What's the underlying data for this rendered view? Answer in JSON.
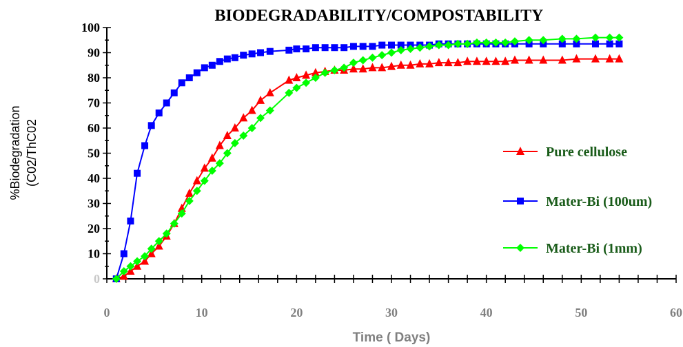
{
  "chart_data": {
    "type": "line",
    "title": "BIODEGRADABILITY/COMPOSTABILITY",
    "xlabel": "Time ( Days)",
    "ylabel_lines": [
      "%Biodegradation",
      "(C02/ThC02"
    ],
    "xlim": [
      0,
      60
    ],
    "ylim": [
      0,
      100
    ],
    "x_ticks": [
      "0",
      "10",
      "20",
      "30",
      "40",
      "50",
      "60"
    ],
    "y_ticks": [
      "0",
      "10",
      "20",
      "30",
      "40",
      "50",
      "60",
      "70",
      "80",
      "90",
      "100"
    ],
    "legend_position": "right",
    "series": [
      {
        "name": "Pure cellulose",
        "color": "#ff0000",
        "marker": "triangle",
        "x": [
          1,
          1.8,
          2.5,
          3.2,
          4,
          4.7,
          5.5,
          6.3,
          7.1,
          7.9,
          8.7,
          9.5,
          10.3,
          11.1,
          11.9,
          12.7,
          13.5,
          14.4,
          15.3,
          16.2,
          17.2,
          19.2,
          20,
          21,
          22,
          23,
          24,
          25,
          26,
          27,
          28,
          29,
          30,
          31,
          32,
          33,
          34,
          35,
          36,
          37,
          38,
          39,
          40,
          41,
          42,
          43,
          44.5,
          46,
          48,
          49.5,
          51.5,
          53,
          54
        ],
        "y": [
          0,
          1,
          3,
          5,
          7,
          10,
          13,
          17,
          22,
          28,
          34,
          39,
          44,
          48,
          53,
          57,
          60,
          64,
          67,
          71,
          74,
          79,
          80,
          81,
          82,
          82.5,
          83,
          83,
          83.5,
          83.5,
          84,
          84,
          84.5,
          85,
          85,
          85.5,
          85.5,
          86,
          86,
          86,
          86.5,
          86.5,
          86.5,
          86.5,
          86.5,
          87,
          87,
          87,
          87,
          87.5,
          87.5,
          87.5,
          87.5
        ]
      },
      {
        "name": "Mater-Bi (100um)",
        "color": "#0000ff",
        "marker": "square",
        "x": [
          1,
          1.8,
          2.5,
          3.2,
          4,
          4.7,
          5.5,
          6.3,
          7.1,
          7.9,
          8.7,
          9.5,
          10.3,
          11.1,
          11.9,
          12.7,
          13.5,
          14.4,
          15.3,
          16.2,
          17.2,
          19.2,
          20,
          21,
          22,
          23,
          24,
          25,
          26,
          27,
          28,
          29,
          30,
          31,
          32,
          33,
          34,
          35,
          36,
          37,
          38,
          39,
          40,
          41,
          42,
          43,
          44.5,
          46,
          48,
          49.5,
          51.5,
          53,
          54
        ],
        "y": [
          0,
          10,
          23,
          42,
          53,
          61,
          66,
          70,
          74,
          78,
          80,
          82,
          84,
          85,
          86.5,
          87.5,
          88,
          89,
          89.5,
          90,
          90.5,
          91,
          91.5,
          91.5,
          92,
          92,
          92,
          92,
          92.5,
          92.5,
          92.5,
          93,
          93,
          93,
          93,
          93,
          93,
          93.5,
          93.5,
          93.5,
          93.5,
          93.5,
          93.5,
          93.5,
          93.5,
          93.5,
          93.5,
          93.5,
          93.5,
          93.5,
          93.5,
          93.5,
          93.5
        ]
      },
      {
        "name": "Mater-Bi (1mm)",
        "color": "#00ff00",
        "marker": "diamond",
        "x": [
          1,
          1.8,
          2.5,
          3.2,
          4,
          4.7,
          5.5,
          6.3,
          7.1,
          7.9,
          8.7,
          9.5,
          10.3,
          11.1,
          11.9,
          12.7,
          13.5,
          14.4,
          15.3,
          16.2,
          17.2,
          19.2,
          20,
          21,
          22,
          23,
          24,
          25,
          26,
          27,
          28,
          29,
          30,
          31,
          32,
          33,
          34,
          35,
          36,
          37,
          38,
          39,
          40,
          41,
          42,
          43,
          44.5,
          46,
          48,
          49.5,
          51.5,
          53,
          54
        ],
        "y": [
          0,
          3,
          5,
          7,
          9,
          12,
          15,
          18,
          22,
          26,
          31,
          35,
          39,
          43,
          46,
          50,
          54,
          57,
          60,
          64,
          67,
          74,
          76,
          78,
          80,
          82,
          83,
          84,
          86,
          87,
          88,
          89,
          90,
          91,
          91.5,
          92,
          92.5,
          93,
          93,
          93.5,
          93.5,
          94,
          94,
          94,
          94,
          94.5,
          95,
          95,
          95.5,
          95.5,
          96,
          96,
          96
        ]
      }
    ]
  }
}
